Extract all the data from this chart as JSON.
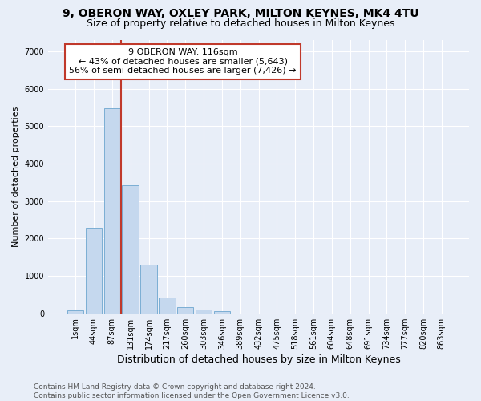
{
  "title1": "9, OBERON WAY, OXLEY PARK, MILTON KEYNES, MK4 4TU",
  "title2": "Size of property relative to detached houses in Milton Keynes",
  "xlabel": "Distribution of detached houses by size in Milton Keynes",
  "ylabel": "Number of detached properties",
  "categories": [
    "1sqm",
    "44sqm",
    "87sqm",
    "131sqm",
    "174sqm",
    "217sqm",
    "260sqm",
    "303sqm",
    "346sqm",
    "389sqm",
    "432sqm",
    "475sqm",
    "518sqm",
    "561sqm",
    "604sqm",
    "648sqm",
    "691sqm",
    "734sqm",
    "777sqm",
    "820sqm",
    "863sqm"
  ],
  "bar_values": [
    80,
    2280,
    5480,
    3420,
    1300,
    430,
    170,
    100,
    60,
    0,
    0,
    0,
    0,
    0,
    0,
    0,
    0,
    0,
    0,
    0,
    0
  ],
  "bar_color": "#c5d8ee",
  "bar_edge_color": "#7baed4",
  "vline_color": "#c0392b",
  "vline_x": 2.5,
  "annotation_text": "9 OBERON WAY: 116sqm\n← 43% of detached houses are smaller (5,643)\n56% of semi-detached houses are larger (7,426) →",
  "annotation_box_color": "#ffffff",
  "annotation_box_edge": "#c0392b",
  "ylim": [
    0,
    7300
  ],
  "yticks": [
    0,
    1000,
    2000,
    3000,
    4000,
    5000,
    6000,
    7000
  ],
  "bg_color": "#e8eef8",
  "footnote": "Contains HM Land Registry data © Crown copyright and database right 2024.\nContains public sector information licensed under the Open Government Licence v3.0.",
  "title1_fontsize": 10,
  "title2_fontsize": 9,
  "xlabel_fontsize": 9,
  "ylabel_fontsize": 8,
  "tick_fontsize": 7,
  "annotation_fontsize": 8,
  "footnote_fontsize": 6.5
}
